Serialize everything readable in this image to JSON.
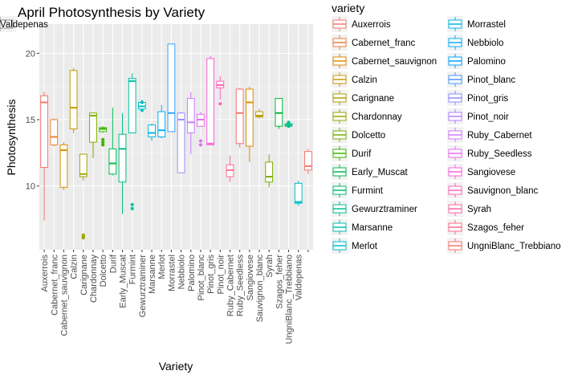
{
  "chart_data": {
    "type": "boxplot",
    "title": "April Photosynthesis by Variety",
    "xlabel": "Variety",
    "ylabel": "Photosynthesis",
    "ylim": [
      5.2,
      22.2
    ],
    "yticks": [
      10,
      15,
      20
    ],
    "grid": true,
    "legend_title": "variety",
    "legend_position": "right",
    "series": [
      {
        "name": "Auxerrois",
        "color": "#F8766D",
        "min": 7.4,
        "q1": 11.4,
        "median": 16.3,
        "q3": 16.8,
        "max": 17.1,
        "outliers": []
      },
      {
        "name": "Cabernet_franc",
        "color": "#EA8331",
        "min": 13.0,
        "q1": 13.1,
        "median": 13.7,
        "q3": 15.0,
        "max": 15.1,
        "outliers": []
      },
      {
        "name": "Cabernet_sauvignon",
        "color": "#D89000",
        "min": 9.7,
        "q1": 9.9,
        "median": 12.7,
        "q3": 13.1,
        "max": 13.3,
        "outliers": []
      },
      {
        "name": "Calzin",
        "color": "#C09B00",
        "min": 14.0,
        "q1": 14.3,
        "median": 15.9,
        "q3": 18.7,
        "max": 18.9,
        "outliers": []
      },
      {
        "name": "Carignane",
        "color": "#A3A500",
        "min": 10.4,
        "q1": 10.7,
        "median": 10.9,
        "q3": 12.4,
        "max": 12.4,
        "outliers": [
          6.1,
          6.2,
          6.3
        ]
      },
      {
        "name": "Chardonnay",
        "color": "#7CAE00",
        "min": 12.1,
        "q1": 13.3,
        "median": 15.3,
        "q3": 15.5,
        "max": 15.5,
        "outliers": []
      },
      {
        "name": "Dolcetto",
        "color": "#39B600",
        "min": 14.0,
        "q1": 14.1,
        "median": 14.3,
        "q3": 14.4,
        "max": 14.5,
        "outliers": [
          13.1,
          13.3,
          13.5
        ]
      },
      {
        "name": "Durif",
        "color": "#00BB4E",
        "min": 10.8,
        "q1": 10.9,
        "median": 11.7,
        "q3": 12.8,
        "max": 15.9,
        "outliers": []
      },
      {
        "name": "Early_Muscat",
        "color": "#00BF7D",
        "min": 7.9,
        "q1": 10.3,
        "median": 12.8,
        "q3": 13.9,
        "max": 15.5,
        "outliers": []
      },
      {
        "name": "Furmint",
        "color": "#00C1A3",
        "min": 14.0,
        "q1": 14.0,
        "median": 17.9,
        "q3": 18.1,
        "max": 18.5,
        "outliers": [
          8.3,
          8.6
        ]
      },
      {
        "name": "Gewurztraminer",
        "color": "#00BFC4",
        "min": 15.7,
        "q1": 15.8,
        "median": 16.0,
        "q3": 16.3,
        "max": 16.5,
        "outliers": [
          15.7,
          16.3
        ]
      },
      {
        "name": "Marsanne",
        "color": "#00BAE0",
        "min": 13.4,
        "q1": 13.7,
        "median": 14.0,
        "q3": 14.6,
        "max": 14.7,
        "outliers": []
      },
      {
        "name": "Merlot",
        "color": "#00B0F6",
        "min": 13.6,
        "q1": 13.7,
        "median": 14.2,
        "q3": 15.6,
        "max": 16.1,
        "outliers": []
      },
      {
        "name": "Morrastel",
        "color": "#35A2FF",
        "min": 14.1,
        "q1": 14.1,
        "median": 15.5,
        "q3": 20.7,
        "max": 20.7,
        "outliers": []
      },
      {
        "name": "Nebbiolo",
        "color": "#9590FF",
        "min": 11.0,
        "q1": 11.0,
        "median": 15.0,
        "q3": 15.5,
        "max": 15.6,
        "outliers": []
      },
      {
        "name": "Palomino",
        "color": "#C77CFF",
        "min": 12.4,
        "q1": 14.0,
        "median": 14.8,
        "q3": 16.6,
        "max": 17.1,
        "outliers": []
      },
      {
        "name": "Pinot_blanc",
        "color": "#E76BF3",
        "min": 14.5,
        "q1": 14.5,
        "median": 15.0,
        "q3": 15.4,
        "max": 15.6,
        "outliers": [
          13.1,
          13.4
        ]
      },
      {
        "name": "Pinot_gris",
        "color": "#FA62DB",
        "min": 13.1,
        "q1": 13.1,
        "median": 13.2,
        "q3": 19.6,
        "max": 19.8,
        "outliers": []
      },
      {
        "name": "Pinot_noir",
        "color": "#FF62BC",
        "min": 16.5,
        "q1": 17.4,
        "median": 17.6,
        "q3": 17.9,
        "max": 18.3,
        "outliers": [
          16.2
        ]
      },
      {
        "name": "Ruby_Cabernet",
        "color": "#FF6C91",
        "min": 10.3,
        "q1": 10.7,
        "median": 11.2,
        "q3": 11.6,
        "max": 12.3,
        "outliers": []
      },
      {
        "name": "Ruby_Seedless",
        "color": "#F8766D",
        "min": 12.9,
        "q1": 13.2,
        "median": 15.5,
        "q3": 17.3,
        "max": 17.4,
        "outliers": []
      },
      {
        "name": "Sangiovese",
        "color": "#DE8C00",
        "min": 11.8,
        "q1": 13.0,
        "median": 16.3,
        "q3": 17.3,
        "max": 17.5,
        "outliers": []
      },
      {
        "name": "Sauvignon_blanc",
        "color": "#B79F00",
        "min": 15.1,
        "q1": 15.2,
        "median": 15.3,
        "q3": 15.6,
        "max": 15.8,
        "outliers": []
      },
      {
        "name": "Syrah",
        "color": "#7CAE00",
        "min": 9.9,
        "q1": 10.3,
        "median": 10.7,
        "q3": 11.8,
        "max": 12.4,
        "outliers": []
      },
      {
        "name": "Szagos_feher",
        "color": "#00BA38",
        "min": 14.3,
        "q1": 14.5,
        "median": 15.5,
        "q3": 16.6,
        "max": 16.6,
        "outliers": []
      },
      {
        "name": "UngniBlanc_Trebbiano",
        "color": "#00C08B",
        "min": 14.5,
        "q1": 14.5,
        "median": 14.6,
        "q3": 14.7,
        "max": 14.8,
        "outliers": [
          14.5,
          14.8
        ]
      },
      {
        "name": "Valdepenas",
        "color": "#00BFC4",
        "min": 8.5,
        "q1": 8.7,
        "median": 8.8,
        "q3": 10.2,
        "max": 10.4,
        "outliers": []
      },
      {
        "name": "",
        "color": "#F8766D",
        "min": 10.9,
        "q1": 11.2,
        "median": 11.5,
        "q3": 12.6,
        "max": 12.8,
        "outliers": []
      }
    ],
    "legend_colors": [
      "#F8766D",
      "#EE7C3E",
      "#DD8B00",
      "#C89900",
      "#B1A000",
      "#96A900",
      "#72B000",
      "#3AB700",
      "#00BB4E",
      "#00BE74",
      "#00C094",
      "#00BFB0",
      "#00BDCB",
      "#00B8E2",
      "#00AFF5",
      "#00A4FF",
      "#4697FF",
      "#8F8CFF",
      "#B67FFF",
      "#D574FF",
      "#EE6BF0",
      "#FA64DA",
      "#FF63BE",
      "#FF68A1",
      "#FF6E85",
      "#F8766D"
    ]
  }
}
